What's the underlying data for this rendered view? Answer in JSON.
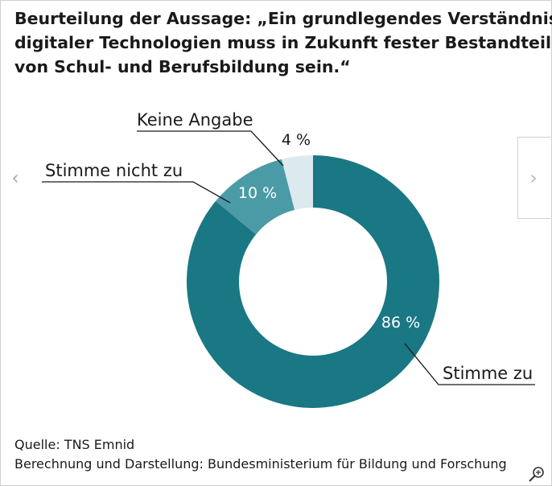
{
  "title_lines": [
    "Beurteilung der Aussage: „Ein grundlegendes Verständnis",
    "digitaler Technologien muss in Zukunft fester Bestandteil",
    "von Schul- und Berufsbildung sein.“"
  ],
  "chart_data": {
    "type": "pie",
    "variant": "donut",
    "title": "Beurteilung der Aussage: „Ein grundlegendes Verständnis digitaler Technologien muss in Zukunft fester Bestandteil von Schul- und Berufsbildung sein.“",
    "categories": [
      "Stimme zu",
      "Stimme nicht zu",
      "Keine Angabe"
    ],
    "values": [
      86,
      10,
      4
    ],
    "value_labels": [
      "86 %",
      "10 %",
      "4 %"
    ],
    "colors": [
      "#1a7784",
      "#4b9ba6",
      "#dce9ee"
    ],
    "label_colors": [
      "#ffffff",
      "#ffffff",
      "#1a1a1a"
    ],
    "start": "12 o'clock, clockwise"
  },
  "source": {
    "line1": "Quelle: TNS Emnid",
    "line2": "Berechnung und Darstellung: Bundesministerium für Bildung und Forschung"
  },
  "icons": {
    "prev": "chevron-left-icon",
    "next": "chevron-right-icon",
    "zoom": "zoom-in-icon"
  }
}
